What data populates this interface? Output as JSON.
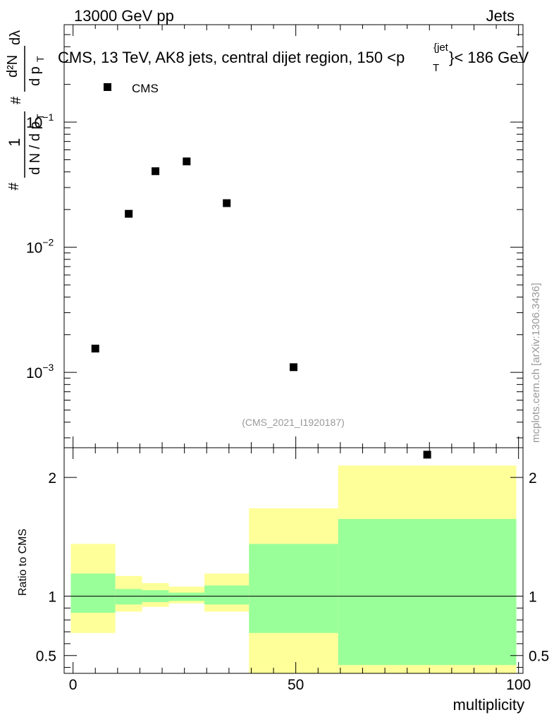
{
  "header": {
    "left": "13000 GeV pp",
    "right": "Jets"
  },
  "plot_title": {
    "main": "CMS, 13 TeV, AK8 jets, central dijet region, 150 <p",
    "sup": "{jet",
    "sub": "T",
    "tail": "}< 186 GeV"
  },
  "legend": {
    "label": "CMS"
  },
  "watermark": "mcplots.cern.ch [arXiv:1306.3436]",
  "analysis_id": "(CMS_2021_I1920187)",
  "colors": {
    "band_outer": "#ffff99",
    "band_inner": "#99ff99",
    "marker": "#000000",
    "annotation": "#999999"
  },
  "chart_data": [
    {
      "type": "scatter",
      "series": [
        {
          "name": "CMS",
          "x": [
            5,
            12.5,
            18.5,
            25.5,
            34.5,
            49.5,
            79.5
          ],
          "values": [
            0.00155,
            0.0185,
            0.0405,
            0.0485,
            0.0225,
            0.0011,
            0.00022
          ]
        }
      ],
      "xlim": [
        -2,
        101
      ],
      "ylim": [
        0.00025,
        0.6
      ],
      "yscale": "log",
      "yticks": [
        {
          "value": 0.001,
          "base": "10",
          "exp": "−3"
        },
        {
          "value": 0.01,
          "base": "10",
          "exp": "−2"
        },
        {
          "value": 0.1,
          "base": "10",
          "exp": "−1"
        }
      ],
      "ylabel": {
        "frac_num": "1",
        "frac_den": "d N / d p",
        "frac_den_sub": "T",
        "hash1": "#",
        "hash2": "#",
        "deriv_num": "d²N",
        "deriv_den": "d p",
        "deriv_den_sub": "T",
        "dlambda": "dλ"
      }
    },
    {
      "type": "area",
      "ylabel": "Ratio to CMS",
      "xlabel": "multiplicity",
      "xlim": [
        -2,
        101
      ],
      "ylim": [
        0.35,
        2.25
      ],
      "xticks": [
        "0",
        "50",
        "100"
      ],
      "yticks": [
        "0.5",
        "1",
        "2"
      ],
      "reference_line": 1,
      "bins": [
        {
          "x0": -0.5,
          "x1": 9.5,
          "outer": [
            0.69,
            1.44
          ],
          "inner": [
            0.86,
            1.19
          ]
        },
        {
          "x0": 9.5,
          "x1": 15.5,
          "outer": [
            0.87,
            1.17
          ],
          "inner": [
            0.93,
            1.06
          ]
        },
        {
          "x0": 15.5,
          "x1": 21.5,
          "outer": [
            0.91,
            1.11
          ],
          "inner": [
            0.95,
            1.05
          ]
        },
        {
          "x0": 21.5,
          "x1": 29.5,
          "outer": [
            0.94,
            1.08
          ],
          "inner": [
            0.96,
            1.03
          ]
        },
        {
          "x0": 29.5,
          "x1": 39.5,
          "outer": [
            0.87,
            1.19
          ],
          "inner": [
            0.93,
            1.09
          ]
        },
        {
          "x0": 39.5,
          "x1": 59.5,
          "outer": [
            0.3,
            1.74
          ],
          "inner": [
            0.69,
            1.44
          ]
        },
        {
          "x0": 59.5,
          "x1": 99.5,
          "outer": [
            0.3,
            2.1
          ],
          "inner": [
            0.42,
            1.65
          ]
        }
      ]
    }
  ]
}
